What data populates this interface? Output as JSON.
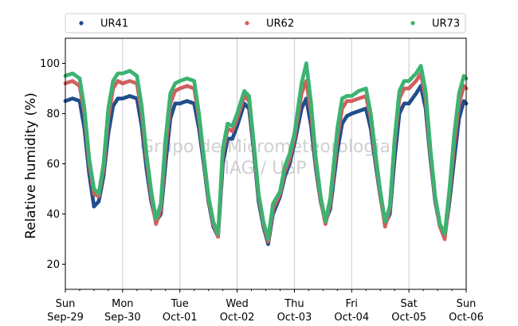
{
  "chart_data": {
    "type": "scatter",
    "ylabel": "Relative humidity (%)",
    "ylim": [
      10,
      110
    ],
    "yticks": [
      20,
      40,
      60,
      80,
      100
    ],
    "xlim": [
      "2024-09-29T00:00",
      "2024-10-06T00:00"
    ],
    "xticks": [
      {
        "date": "2024-09-29",
        "day": "Sun",
        "label": "Sep-29"
      },
      {
        "date": "2024-09-30",
        "day": "Mon",
        "label": "Sep-30"
      },
      {
        "date": "2024-10-01",
        "day": "Tue",
        "label": "Oct-01"
      },
      {
        "date": "2024-10-02",
        "day": "Wed",
        "label": "Oct-02"
      },
      {
        "date": "2024-10-03",
        "day": "Thu",
        "label": "Oct-03"
      },
      {
        "date": "2024-10-04",
        "day": "Fri",
        "label": "Oct-04"
      },
      {
        "date": "2024-10-05",
        "day": "Sat",
        "label": "Oct-05"
      },
      {
        "date": "2024-10-06",
        "day": "Sun",
        "label": "Oct-06"
      }
    ],
    "grid": "vertical",
    "legend": "top",
    "watermark": [
      "Grupo de Micrometeorologia",
      "IAG / USP"
    ],
    "series": [
      {
        "name": "UR41",
        "color": "#1f4e8c",
        "points": [
          [
            "2024-09-29T00:00",
            85
          ],
          [
            "2024-09-29T03:00",
            86
          ],
          [
            "2024-09-29T06:00",
            85
          ],
          [
            "2024-09-29T08:00",
            74
          ],
          [
            "2024-09-29T10:00",
            56
          ],
          [
            "2024-09-29T12:00",
            43
          ],
          [
            "2024-09-29T14:00",
            45
          ],
          [
            "2024-09-29T16:00",
            55
          ],
          [
            "2024-09-29T18:00",
            72
          ],
          [
            "2024-09-29T20:00",
            83
          ],
          [
            "2024-09-29T22:00",
            86
          ],
          [
            "2024-09-30T00:00",
            86
          ],
          [
            "2024-09-30T03:00",
            87
          ],
          [
            "2024-09-30T06:00",
            86
          ],
          [
            "2024-09-30T08:00",
            75
          ],
          [
            "2024-09-30T10:00",
            58
          ],
          [
            "2024-09-30T12:00",
            45
          ],
          [
            "2024-09-30T14:00",
            37
          ],
          [
            "2024-09-30T16:00",
            40
          ],
          [
            "2024-09-30T18:00",
            60
          ],
          [
            "2024-09-30T20:00",
            78
          ],
          [
            "2024-09-30T22:00",
            84
          ],
          [
            "2024-10-01T00:00",
            84
          ],
          [
            "2024-10-01T03:00",
            85
          ],
          [
            "2024-10-01T06:00",
            84
          ],
          [
            "2024-10-01T08:00",
            74
          ],
          [
            "2024-10-01T10:00",
            60
          ],
          [
            "2024-10-01T12:00",
            45
          ],
          [
            "2024-10-01T14:00",
            35
          ],
          [
            "2024-10-01T16:00",
            31
          ],
          [
            "2024-10-01T18:00",
            60
          ],
          [
            "2024-10-01T20:00",
            70
          ],
          [
            "2024-10-01T22:00",
            70
          ],
          [
            "2024-10-02T00:00",
            75
          ],
          [
            "2024-10-02T03:00",
            84
          ],
          [
            "2024-10-02T05:00",
            82
          ],
          [
            "2024-10-02T07:00",
            65
          ],
          [
            "2024-10-02T09:00",
            45
          ],
          [
            "2024-10-02T11:00",
            35
          ],
          [
            "2024-10-02T13:00",
            28
          ],
          [
            "2024-10-02T15:00",
            40
          ],
          [
            "2024-10-02T18:00",
            47
          ],
          [
            "2024-10-02T20:00",
            55
          ],
          [
            "2024-10-02T22:00",
            60
          ],
          [
            "2024-10-03T00:00",
            68
          ],
          [
            "2024-10-03T03:00",
            82
          ],
          [
            "2024-10-03T05:00",
            86
          ],
          [
            "2024-10-03T07:00",
            75
          ],
          [
            "2024-10-03T09:00",
            58
          ],
          [
            "2024-10-03T11:00",
            45
          ],
          [
            "2024-10-03T13:00",
            37
          ],
          [
            "2024-10-03T15:00",
            42
          ],
          [
            "2024-10-03T18:00",
            65
          ],
          [
            "2024-10-03T20:00",
            76
          ],
          [
            "2024-10-03T22:00",
            79
          ],
          [
            "2024-10-04T00:00",
            80
          ],
          [
            "2024-10-04T03:00",
            81
          ],
          [
            "2024-10-04T06:00",
            82
          ],
          [
            "2024-10-04T08:00",
            74
          ],
          [
            "2024-10-04T10:00",
            60
          ],
          [
            "2024-10-04T12:00",
            47
          ],
          [
            "2024-10-04T14:00",
            36
          ],
          [
            "2024-10-04T16:00",
            40
          ],
          [
            "2024-10-04T18:00",
            62
          ],
          [
            "2024-10-04T20:00",
            80
          ],
          [
            "2024-10-04T22:00",
            84
          ],
          [
            "2024-10-05T00:00",
            84
          ],
          [
            "2024-10-05T03:00",
            88
          ],
          [
            "2024-10-05T05:00",
            91
          ],
          [
            "2024-10-05T07:00",
            82
          ],
          [
            "2024-10-05T09:00",
            62
          ],
          [
            "2024-10-05T11:00",
            45
          ],
          [
            "2024-10-05T13:00",
            35
          ],
          [
            "2024-10-05T15:00",
            31
          ],
          [
            "2024-10-05T17:00",
            45
          ],
          [
            "2024-10-05T19:00",
            62
          ],
          [
            "2024-10-05T21:00",
            78
          ],
          [
            "2024-10-05T23:00",
            85
          ],
          [
            "2024-10-06T00:00",
            84
          ]
        ]
      },
      {
        "name": "UR62",
        "color": "#d0605e",
        "points": [
          [
            "2024-09-29T00:00",
            92
          ],
          [
            "2024-09-29T03:00",
            93
          ],
          [
            "2024-09-29T06:00",
            91
          ],
          [
            "2024-09-29T08:00",
            80
          ],
          [
            "2024-09-29T10:00",
            60
          ],
          [
            "2024-09-29T12:00",
            48
          ],
          [
            "2024-09-29T14:00",
            47
          ],
          [
            "2024-09-29T16:00",
            58
          ],
          [
            "2024-09-29T18:00",
            78
          ],
          [
            "2024-09-29T20:00",
            90
          ],
          [
            "2024-09-29T22:00",
            93
          ],
          [
            "2024-09-30T00:00",
            92
          ],
          [
            "2024-09-30T03:00",
            93
          ],
          [
            "2024-09-30T06:00",
            92
          ],
          [
            "2024-09-30T08:00",
            80
          ],
          [
            "2024-09-30T10:00",
            62
          ],
          [
            "2024-09-30T12:00",
            47
          ],
          [
            "2024-09-30T14:00",
            36
          ],
          [
            "2024-09-30T16:00",
            42
          ],
          [
            "2024-09-30T18:00",
            66
          ],
          [
            "2024-09-30T20:00",
            84
          ],
          [
            "2024-09-30T22:00",
            89
          ],
          [
            "2024-10-01T00:00",
            90
          ],
          [
            "2024-10-01T03:00",
            91
          ],
          [
            "2024-10-01T06:00",
            90
          ],
          [
            "2024-10-01T08:00",
            78
          ],
          [
            "2024-10-01T10:00",
            62
          ],
          [
            "2024-10-01T12:00",
            46
          ],
          [
            "2024-10-01T14:00",
            36
          ],
          [
            "2024-10-01T16:00",
            31
          ],
          [
            "2024-10-01T18:00",
            64
          ],
          [
            "2024-10-01T20:00",
            74
          ],
          [
            "2024-10-01T22:00",
            73
          ],
          [
            "2024-10-02T00:00",
            78
          ],
          [
            "2024-10-02T03:00",
            87
          ],
          [
            "2024-10-02T05:00",
            85
          ],
          [
            "2024-10-02T07:00",
            67
          ],
          [
            "2024-10-02T09:00",
            47
          ],
          [
            "2024-10-02T11:00",
            36
          ],
          [
            "2024-10-02T13:00",
            29
          ],
          [
            "2024-10-02T15:00",
            42
          ],
          [
            "2024-10-02T18:00",
            48
          ],
          [
            "2024-10-02T20:00",
            57
          ],
          [
            "2024-10-02T22:00",
            62
          ],
          [
            "2024-10-03T00:00",
            70
          ],
          [
            "2024-10-03T03:00",
            88
          ],
          [
            "2024-10-03T05:00",
            93
          ],
          [
            "2024-10-03T07:00",
            80
          ],
          [
            "2024-10-03T09:00",
            60
          ],
          [
            "2024-10-03T11:00",
            46
          ],
          [
            "2024-10-03T13:00",
            36
          ],
          [
            "2024-10-03T15:00",
            44
          ],
          [
            "2024-10-03T18:00",
            70
          ],
          [
            "2024-10-03T20:00",
            82
          ],
          [
            "2024-10-03T22:00",
            85
          ],
          [
            "2024-10-04T00:00",
            85
          ],
          [
            "2024-10-04T03:00",
            86
          ],
          [
            "2024-10-04T06:00",
            87
          ],
          [
            "2024-10-04T08:00",
            78
          ],
          [
            "2024-10-04T10:00",
            62
          ],
          [
            "2024-10-04T12:00",
            48
          ],
          [
            "2024-10-04T14:00",
            35
          ],
          [
            "2024-10-04T16:00",
            42
          ],
          [
            "2024-10-04T18:00",
            68
          ],
          [
            "2024-10-04T20:00",
            86
          ],
          [
            "2024-10-04T22:00",
            90
          ],
          [
            "2024-10-05T00:00",
            90
          ],
          [
            "2024-10-05T03:00",
            93
          ],
          [
            "2024-10-05T05:00",
            96
          ],
          [
            "2024-10-05T07:00",
            86
          ],
          [
            "2024-10-05T09:00",
            64
          ],
          [
            "2024-10-05T11:00",
            46
          ],
          [
            "2024-10-05T13:00",
            35
          ],
          [
            "2024-10-05T15:00",
            30
          ],
          [
            "2024-10-05T17:00",
            48
          ],
          [
            "2024-10-05T19:00",
            68
          ],
          [
            "2024-10-05T21:00",
            84
          ],
          [
            "2024-10-05T23:00",
            91
          ],
          [
            "2024-10-06T00:00",
            90
          ]
        ]
      },
      {
        "name": "UR73",
        "color": "#3cb371",
        "points": [
          [
            "2024-09-29T00:00",
            95
          ],
          [
            "2024-09-29T03:00",
            96
          ],
          [
            "2024-09-29T06:00",
            94
          ],
          [
            "2024-09-29T08:00",
            82
          ],
          [
            "2024-09-29T10:00",
            62
          ],
          [
            "2024-09-29T12:00",
            50
          ],
          [
            "2024-09-29T14:00",
            48
          ],
          [
            "2024-09-29T16:00",
            60
          ],
          [
            "2024-09-29T18:00",
            82
          ],
          [
            "2024-09-29T20:00",
            93
          ],
          [
            "2024-09-29T22:00",
            96
          ],
          [
            "2024-09-30T00:00",
            96
          ],
          [
            "2024-09-30T03:00",
            97
          ],
          [
            "2024-09-30T06:00",
            95
          ],
          [
            "2024-09-30T08:00",
            83
          ],
          [
            "2024-09-30T10:00",
            64
          ],
          [
            "2024-09-30T12:00",
            49
          ],
          [
            "2024-09-30T14:00",
            38
          ],
          [
            "2024-09-30T16:00",
            44
          ],
          [
            "2024-09-30T18:00",
            70
          ],
          [
            "2024-09-30T20:00",
            88
          ],
          [
            "2024-09-30T22:00",
            92
          ],
          [
            "2024-10-01T00:00",
            93
          ],
          [
            "2024-10-01T03:00",
            94
          ],
          [
            "2024-10-01T06:00",
            93
          ],
          [
            "2024-10-01T08:00",
            80
          ],
          [
            "2024-10-01T10:00",
            63
          ],
          [
            "2024-10-01T12:00",
            47
          ],
          [
            "2024-10-01T14:00",
            37
          ],
          [
            "2024-10-01T16:00",
            32
          ],
          [
            "2024-10-01T18:00",
            66
          ],
          [
            "2024-10-01T20:00",
            76
          ],
          [
            "2024-10-01T22:00",
            75
          ],
          [
            "2024-10-02T00:00",
            80
          ],
          [
            "2024-10-02T03:00",
            89
          ],
          [
            "2024-10-02T05:00",
            87
          ],
          [
            "2024-10-02T07:00",
            68
          ],
          [
            "2024-10-02T09:00",
            48
          ],
          [
            "2024-10-02T11:00",
            37
          ],
          [
            "2024-10-02T13:00",
            30
          ],
          [
            "2024-10-02T15:00",
            44
          ],
          [
            "2024-10-02T18:00",
            49
          ],
          [
            "2024-10-02T20:00",
            59
          ],
          [
            "2024-10-02T22:00",
            64
          ],
          [
            "2024-10-03T00:00",
            72
          ],
          [
            "2024-10-03T03:00",
            92
          ],
          [
            "2024-10-03T05:00",
            100
          ],
          [
            "2024-10-03T07:00",
            84
          ],
          [
            "2024-10-03T09:00",
            62
          ],
          [
            "2024-10-03T11:00",
            47
          ],
          [
            "2024-10-03T13:00",
            37
          ],
          [
            "2024-10-03T15:00",
            46
          ],
          [
            "2024-10-03T18:00",
            74
          ],
          [
            "2024-10-03T20:00",
            86
          ],
          [
            "2024-10-03T22:00",
            87
          ],
          [
            "2024-10-04T00:00",
            87
          ],
          [
            "2024-10-04T03:00",
            89
          ],
          [
            "2024-10-04T06:00",
            90
          ],
          [
            "2024-10-04T08:00",
            80
          ],
          [
            "2024-10-04T10:00",
            64
          ],
          [
            "2024-10-04T12:00",
            49
          ],
          [
            "2024-10-04T14:00",
            37
          ],
          [
            "2024-10-04T16:00",
            43
          ],
          [
            "2024-10-04T18:00",
            70
          ],
          [
            "2024-10-04T20:00",
            89
          ],
          [
            "2024-10-04T22:00",
            93
          ],
          [
            "2024-10-05T00:00",
            93
          ],
          [
            "2024-10-05T03:00",
            96
          ],
          [
            "2024-10-05T05:00",
            99
          ],
          [
            "2024-10-05T07:00",
            89
          ],
          [
            "2024-10-05T09:00",
            66
          ],
          [
            "2024-10-05T11:00",
            47
          ],
          [
            "2024-10-05T13:00",
            36
          ],
          [
            "2024-10-05T15:00",
            32
          ],
          [
            "2024-10-05T17:00",
            50
          ],
          [
            "2024-10-05T19:00",
            72
          ],
          [
            "2024-10-05T21:00",
            88
          ],
          [
            "2024-10-05T23:00",
            95
          ],
          [
            "2024-10-06T00:00",
            94
          ]
        ]
      }
    ]
  }
}
